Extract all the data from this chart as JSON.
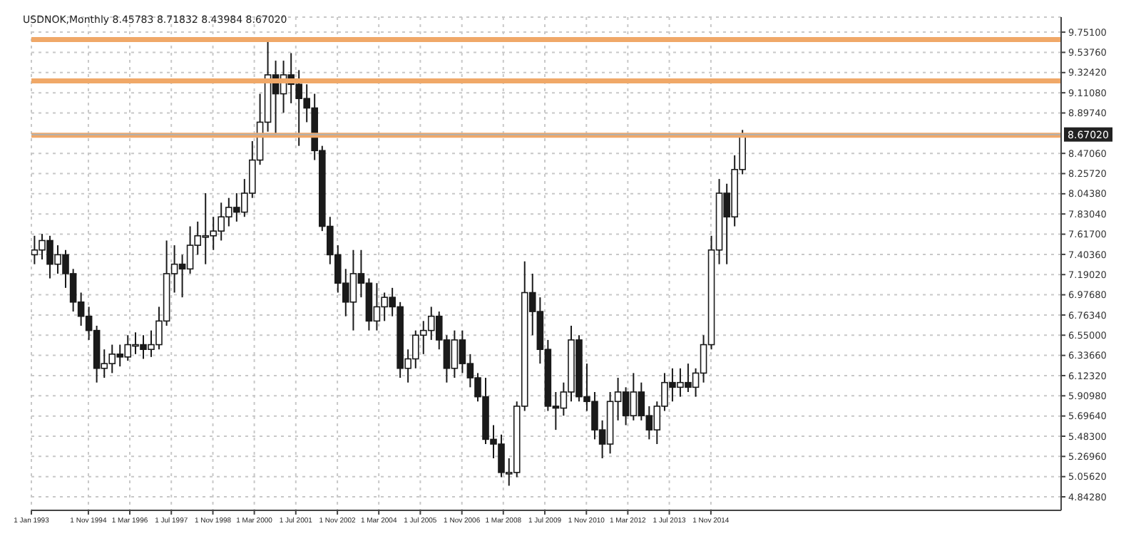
{
  "chart_data": {
    "type": "candlestick",
    "title": "USDNOK,Monthly  8.45783 8.71832 8.43984 8.67020",
    "color": "#1a1a1a",
    "x": [
      "1993-02",
      "1993-05",
      "1993-08",
      "1993-11",
      "1994-02",
      "1994-05",
      "1994-08",
      "1994-11",
      "1995-02",
      "1995-05",
      "1995-08",
      "1995-11",
      "1996-02",
      "1996-05",
      "1996-08",
      "1996-11",
      "1997-02",
      "1997-05",
      "1997-08",
      "1997-11",
      "1998-02",
      "1998-05",
      "1998-08",
      "1998-11",
      "1999-02",
      "1999-05",
      "1999-08",
      "1999-11",
      "2000-02",
      "2000-05",
      "2000-08",
      "2000-11",
      "2001-02",
      "2001-05",
      "2001-08",
      "2001-11",
      "2002-02",
      "2002-05",
      "2002-08",
      "2002-11",
      "2003-02",
      "2003-05",
      "2003-08",
      "2003-11",
      "2004-02",
      "2004-05",
      "2004-08",
      "2004-11",
      "2005-02",
      "2005-05",
      "2005-08",
      "2005-11",
      "2006-02",
      "2006-05",
      "2006-08",
      "2006-11",
      "2007-02",
      "2007-05",
      "2007-08",
      "2007-11",
      "2008-02",
      "2008-05",
      "2008-08",
      "2008-11",
      "2009-02",
      "2009-05",
      "2009-08",
      "2009-11",
      "2010-02",
      "2010-05",
      "2010-08",
      "2010-11",
      "2011-02",
      "2011-05",
      "2011-08",
      "2011-11",
      "2012-02",
      "2012-05",
      "2012-08",
      "2012-11",
      "2013-02",
      "2013-05",
      "2013-08",
      "2013-11",
      "2014-02",
      "2014-05",
      "2014-08",
      "2014-11",
      "2015-02",
      "2015-05",
      "2015-08",
      "2015-11"
    ],
    "ohlc": [
      [
        7.4,
        7.6,
        7.3,
        7.45
      ],
      [
        7.45,
        7.62,
        7.35,
        7.55
      ],
      [
        7.55,
        7.6,
        7.15,
        7.3
      ],
      [
        7.3,
        7.5,
        7.2,
        7.4
      ],
      [
        7.4,
        7.45,
        7.05,
        7.2
      ],
      [
        7.2,
        7.25,
        6.8,
        6.9
      ],
      [
        6.9,
        7.0,
        6.65,
        6.75
      ],
      [
        6.75,
        6.85,
        6.5,
        6.6
      ],
      [
        6.6,
        6.65,
        6.05,
        6.2
      ],
      [
        6.2,
        6.4,
        6.1,
        6.25
      ],
      [
        6.25,
        6.45,
        6.15,
        6.35
      ],
      [
        6.35,
        6.45,
        6.22,
        6.32
      ],
      [
        6.32,
        6.55,
        6.28,
        6.45
      ],
      [
        6.45,
        6.58,
        6.35,
        6.45
      ],
      [
        6.45,
        6.55,
        6.3,
        6.4
      ],
      [
        6.4,
        6.6,
        6.32,
        6.45
      ],
      [
        6.45,
        6.85,
        6.4,
        6.7
      ],
      [
        6.7,
        7.55,
        6.65,
        7.2
      ],
      [
        7.2,
        7.5,
        7.0,
        7.3
      ],
      [
        7.3,
        7.4,
        6.95,
        7.25
      ],
      [
        7.25,
        7.7,
        7.2,
        7.5
      ],
      [
        7.5,
        7.75,
        7.4,
        7.6
      ],
      [
        7.6,
        8.05,
        7.3,
        7.6
      ],
      [
        7.6,
        7.8,
        7.45,
        7.65
      ],
      [
        7.65,
        7.95,
        7.55,
        7.8
      ],
      [
        7.8,
        8.0,
        7.7,
        7.9
      ],
      [
        7.9,
        8.05,
        7.75,
        7.85
      ],
      [
        7.85,
        8.2,
        7.8,
        8.05
      ],
      [
        8.05,
        8.6,
        8.0,
        8.4
      ],
      [
        8.4,
        9.1,
        8.35,
        8.8
      ],
      [
        8.8,
        9.67,
        8.7,
        9.3
      ],
      [
        9.3,
        9.45,
        8.65,
        9.1
      ],
      [
        9.1,
        9.45,
        8.9,
        9.3
      ],
      [
        9.3,
        9.53,
        9.0,
        9.2
      ],
      [
        9.2,
        9.35,
        8.55,
        9.05
      ],
      [
        9.05,
        9.2,
        8.8,
        8.95
      ],
      [
        8.95,
        9.1,
        8.4,
        8.5
      ],
      [
        8.5,
        8.55,
        7.65,
        7.7
      ],
      [
        7.7,
        7.8,
        7.3,
        7.4
      ],
      [
        7.4,
        7.5,
        7.0,
        7.1
      ],
      [
        7.1,
        7.25,
        6.75,
        6.9
      ],
      [
        6.9,
        7.45,
        6.6,
        7.2
      ],
      [
        7.2,
        7.45,
        6.95,
        7.1
      ],
      [
        7.1,
        7.15,
        6.6,
        6.7
      ],
      [
        6.7,
        7.1,
        6.6,
        6.85
      ],
      [
        6.85,
        7.0,
        6.7,
        6.95
      ],
      [
        6.95,
        7.05,
        6.75,
        6.85
      ],
      [
        6.85,
        6.9,
        6.1,
        6.2
      ],
      [
        6.2,
        6.4,
        6.05,
        6.3
      ],
      [
        6.3,
        6.6,
        6.2,
        6.55
      ],
      [
        6.55,
        6.7,
        6.35,
        6.6
      ],
      [
        6.6,
        6.85,
        6.5,
        6.75
      ],
      [
        6.75,
        6.8,
        6.4,
        6.5
      ],
      [
        6.5,
        6.55,
        6.05,
        6.2
      ],
      [
        6.2,
        6.6,
        6.1,
        6.5
      ],
      [
        6.5,
        6.6,
        6.15,
        6.25
      ],
      [
        6.25,
        6.35,
        6.0,
        6.1
      ],
      [
        6.1,
        6.15,
        5.85,
        5.9
      ],
      [
        5.9,
        6.1,
        5.4,
        5.45
      ],
      [
        5.45,
        5.6,
        5.25,
        5.4
      ],
      [
        5.4,
        5.5,
        5.05,
        5.1
      ],
      [
        5.1,
        5.25,
        4.96,
        5.1
      ],
      [
        5.1,
        5.85,
        5.05,
        5.8
      ],
      [
        5.8,
        7.33,
        5.75,
        7.0
      ],
      [
        7.0,
        7.2,
        6.55,
        6.8
      ],
      [
        6.8,
        6.95,
        6.25,
        6.4
      ],
      [
        6.4,
        6.5,
        5.75,
        5.8
      ],
      [
        5.8,
        5.95,
        5.55,
        5.78
      ],
      [
        5.78,
        6.05,
        5.7,
        5.95
      ],
      [
        5.95,
        6.65,
        5.85,
        6.5
      ],
      [
        6.5,
        6.55,
        5.85,
        5.9
      ],
      [
        5.9,
        6.25,
        5.75,
        5.85
      ],
      [
        5.85,
        5.95,
        5.45,
        5.55
      ],
      [
        5.55,
        5.65,
        5.25,
        5.4
      ],
      [
        5.4,
        5.95,
        5.3,
        5.85
      ],
      [
        5.85,
        6.1,
        5.65,
        5.95
      ],
      [
        5.95,
        6.0,
        5.6,
        5.7
      ],
      [
        5.7,
        6.15,
        5.65,
        5.95
      ],
      [
        5.95,
        6.05,
        5.65,
        5.7
      ],
      [
        5.7,
        5.8,
        5.45,
        5.55
      ],
      [
        5.55,
        5.85,
        5.4,
        5.8
      ],
      [
        5.8,
        6.15,
        5.75,
        6.05
      ],
      [
        6.05,
        6.2,
        5.85,
        6.0
      ],
      [
        6.0,
        6.2,
        5.9,
        6.05
      ],
      [
        6.05,
        6.25,
        5.95,
        6.0
      ],
      [
        6.0,
        6.2,
        5.9,
        6.15
      ],
      [
        6.15,
        6.55,
        6.05,
        6.45
      ],
      [
        6.45,
        7.6,
        6.4,
        7.45
      ],
      [
        7.45,
        8.2,
        7.3,
        8.05
      ],
      [
        8.05,
        8.15,
        7.3,
        7.8
      ],
      [
        7.8,
        8.45,
        7.7,
        8.3
      ],
      [
        8.3,
        8.71832,
        8.25,
        8.6702
      ]
    ],
    "xlim": [
      "1993-01-01",
      "2026-02-01"
    ],
    "xticks": [
      {
        "value": "1993-01-01",
        "label": "1 Jan 1993"
      },
      {
        "value": "1994-11-01",
        "label": "1 Nov 1994"
      },
      {
        "value": "1996-03-01",
        "label": "1 Mar 1996"
      },
      {
        "value": "1997-07-01",
        "label": "1 Jul 1997"
      },
      {
        "value": "1998-11-01",
        "label": "1 Nov 1998"
      },
      {
        "value": "2000-03-01",
        "label": "1 Mar 2000"
      },
      {
        "value": "2001-07-01",
        "label": "1 Jul 2001"
      },
      {
        "value": "2002-11-01",
        "label": "1 Nov 2002"
      },
      {
        "value": "2004-03-01",
        "label": "1 Mar 2004"
      },
      {
        "value": "2005-07-01",
        "label": "1 Jul 2005"
      },
      {
        "value": "2006-11-01",
        "label": "1 Nov 2006"
      },
      {
        "value": "2008-03-01",
        "label": "1 Mar 2008"
      },
      {
        "value": "2009-07-01",
        "label": "1 Jul 2009"
      },
      {
        "value": "2010-11-01",
        "label": "1 Nov 2010"
      },
      {
        "value": "2012-03-01",
        "label": "1 Mar 2012"
      },
      {
        "value": "2013-07-01",
        "label": "1 Jul 2013"
      },
      {
        "value": "2014-11-01",
        "label": "1 Nov 2014"
      }
    ],
    "ylim": [
      4.7,
      9.91
    ],
    "yticks": [
      {
        "value": 4.8428,
        "label": "4.84280"
      },
      {
        "value": 5.0562,
        "label": "5.05620"
      },
      {
        "value": 5.2696,
        "label": "5.26960"
      },
      {
        "value": 5.483,
        "label": "5.48300"
      },
      {
        "value": 5.6964,
        "label": "5.69640"
      },
      {
        "value": 5.9098,
        "label": "5.90980"
      },
      {
        "value": 6.1232,
        "label": "6.12320"
      },
      {
        "value": 6.3366,
        "label": "6.33660"
      },
      {
        "value": 6.55,
        "label": "6.55000"
      },
      {
        "value": 6.7634,
        "label": "6.76340"
      },
      {
        "value": 6.9768,
        "label": "6.97680"
      },
      {
        "value": 7.1902,
        "label": "7.19020"
      },
      {
        "value": 7.4036,
        "label": "7.40360"
      },
      {
        "value": 7.617,
        "label": "7.61700"
      },
      {
        "value": 7.8304,
        "label": "7.83040"
      },
      {
        "value": 8.0438,
        "label": "8.04380"
      },
      {
        "value": 8.2572,
        "label": "8.25720"
      },
      {
        "value": 8.4706,
        "label": "8.47060"
      },
      {
        "value": 8.8974,
        "label": "8.89740"
      },
      {
        "value": 9.1108,
        "label": "9.11080"
      },
      {
        "value": 9.3242,
        "label": "9.32420"
      },
      {
        "value": 9.5376,
        "label": "9.53760"
      },
      {
        "value": 9.751,
        "label": "9.75100"
      }
    ],
    "ref_lines": [
      {
        "axis": "y",
        "value": 9.672,
        "color": "#f0a868"
      },
      {
        "axis": "y",
        "value": 9.237,
        "color": "#f0a868"
      },
      {
        "axis": "y",
        "value": 8.662,
        "color": "#f0a868"
      },
      {
        "axis": "y",
        "value": 8.6702,
        "label": "8.67020",
        "color": "#b0b0b0"
      }
    ],
    "grid": true
  }
}
